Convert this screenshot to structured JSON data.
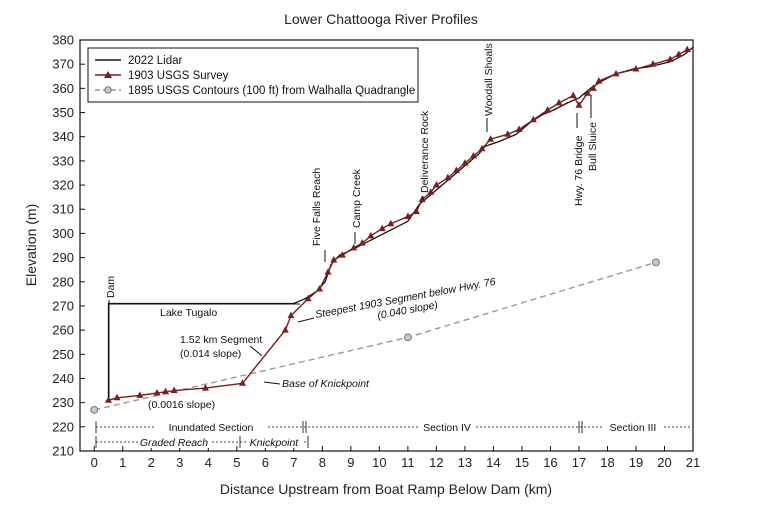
{
  "chart_data": {
    "type": "line",
    "title": "Lower Chattooga River Profiles",
    "xlabel": "Distance Upstream from Boat Ramp Below Dam (km)",
    "ylabel": "Elevation (m)",
    "xlim": [
      -0.5,
      21
    ],
    "ylim": [
      210,
      380
    ],
    "x_ticks": [
      0,
      1,
      2,
      3,
      4,
      5,
      6,
      7,
      8,
      9,
      10,
      11,
      12,
      13,
      14,
      15,
      16,
      17,
      18,
      19,
      20,
      21
    ],
    "y_ticks": [
      210,
      220,
      230,
      240,
      250,
      260,
      270,
      280,
      290,
      300,
      310,
      320,
      330,
      340,
      350,
      360,
      370,
      380
    ],
    "legend_position": "top-left",
    "series": [
      {
        "name": "2022 Lidar",
        "color": "#111111",
        "marker": "none",
        "x": [
          0.4,
          0.5,
          0.5,
          7.0,
          7.4,
          7.8,
          8.1,
          8.3,
          8.6,
          9.0,
          9.5,
          10.0,
          10.5,
          11.0,
          11.4,
          11.8,
          12.2,
          12.7,
          13.1,
          13.5,
          13.7,
          14.2,
          14.8,
          15.3,
          15.7,
          16.1,
          16.6,
          17.0,
          17.1,
          17.4,
          17.8,
          18.3,
          18.9,
          19.5,
          20.2,
          20.7,
          21.0
        ],
        "y": [
          230.5,
          231,
          271,
          271,
          273,
          276,
          280,
          287,
          291,
          293,
          296,
          299,
          302,
          305,
          312,
          316,
          320,
          325,
          329,
          333,
          336,
          338,
          341,
          346,
          349,
          351,
          354,
          356,
          357,
          360,
          363,
          366,
          368,
          369,
          371,
          374,
          377
        ]
      },
      {
        "name": "1903 USGS Survey",
        "color": "#7a1f1f",
        "marker": "triangle",
        "x": [
          0.5,
          0.8,
          1.6,
          2.2,
          2.5,
          2.8,
          3.9,
          5.2,
          6.7,
          6.9,
          7.5,
          7.9,
          8.2,
          8.4,
          8.7,
          9.1,
          9.4,
          9.7,
          10.1,
          10.4,
          11.0,
          11.3,
          11.5,
          11.8,
          12.0,
          12.4,
          12.7,
          13.0,
          13.3,
          13.6,
          13.9,
          14.5,
          14.9,
          15.4,
          15.9,
          16.3,
          16.8,
          17.0,
          17.3,
          17.5,
          17.7,
          18.3,
          19.0,
          19.6,
          20.2,
          20.5,
          20.8
        ],
        "y": [
          231,
          232,
          233,
          234,
          234.5,
          235,
          236,
          238,
          260,
          266,
          273,
          277,
          284,
          289,
          291,
          294,
          296,
          299,
          302,
          304,
          307,
          309,
          314,
          317,
          320,
          323,
          326,
          329,
          332,
          335,
          339,
          341,
          343,
          347,
          351,
          354,
          357,
          353,
          358,
          360,
          363,
          366,
          368,
          370,
          372,
          374,
          376
        ]
      },
      {
        "name": "1895 USGS Contours (100 ft) from Walhalla Quadrangle",
        "color": "#999999",
        "marker": "circle",
        "dashed": true,
        "x": [
          0.0,
          11.0,
          19.7
        ],
        "y": [
          227,
          257,
          288
        ]
      }
    ],
    "annotations": {
      "dam": "Dam",
      "lake": "Lake Tugalo",
      "five_falls": "Five Falls Reach",
      "camp_creek": "Camp Creek",
      "deliverance_rock": "Deliverance Rock",
      "woodall_shoals": "Woodall Shoals",
      "hwy76_bridge": "Hwy. 76 Bridge",
      "bull_sluice": "Bull Sluice",
      "steepest_line1": "Steepest 1903 Segment below Hwy. 76",
      "steepest_line2": "(0.040 slope)",
      "seg152_line1": "1.52 km Segment",
      "seg152_line2": "(0.014 slope)",
      "base_knickpoint": "Base of Knickpoint",
      "slope_0016": "(0.0016 slope)"
    },
    "sections": {
      "inundated": "Inundated Section",
      "section4": "Section IV",
      "section3": "Section III",
      "graded": "Graded Reach",
      "knickpoint": "Knickpoint"
    }
  }
}
